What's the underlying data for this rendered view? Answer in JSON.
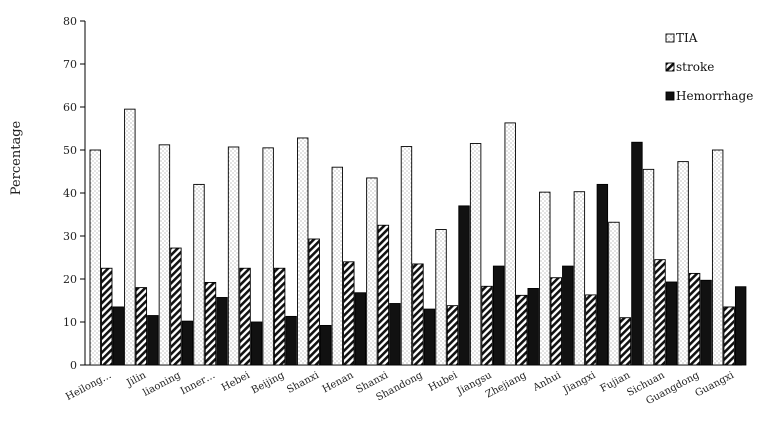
{
  "chart_data": {
    "type": "bar",
    "title": "",
    "xlabel": "",
    "ylabel": "Percentage",
    "ylim": [
      0,
      80
    ],
    "yticks": [
      0,
      10,
      20,
      30,
      40,
      50,
      60,
      70,
      80
    ],
    "grid": false,
    "legend_position": "top-right",
    "categories": [
      "Heilong…",
      "Jilin",
      "liaoning",
      "Inner…",
      "Hebei",
      "Beijing",
      "Shanxi",
      "Henan",
      "Shanxi",
      "Shandong",
      "Hubei",
      "Jiangsu",
      "Zhejiang",
      "Anhui",
      "Jiangxi",
      "Fujian",
      "Sichuan",
      "Guangdong",
      "Guangxi"
    ],
    "series": [
      {
        "name": "TIA",
        "pattern": "dotted",
        "values": [
          50.0,
          59.5,
          51.2,
          42.0,
          50.7,
          50.5,
          52.8,
          46.0,
          43.5,
          50.8,
          31.5,
          51.5,
          56.3,
          40.2,
          40.3,
          33.2,
          45.5,
          47.3,
          50.0
        ]
      },
      {
        "name": "stroke",
        "pattern": "hatched",
        "values": [
          22.5,
          18.0,
          27.2,
          19.2,
          22.5,
          22.5,
          29.3,
          24.0,
          32.5,
          23.5,
          13.8,
          18.3,
          16.2,
          20.3,
          16.3,
          11.0,
          24.5,
          21.3,
          13.5
        ]
      },
      {
        "name": "Hemorrhage",
        "pattern": "solid",
        "values": [
          13.5,
          11.5,
          10.2,
          15.7,
          10.0,
          11.3,
          9.2,
          16.8,
          14.3,
          13.0,
          37.0,
          23.0,
          17.8,
          23.0,
          42.0,
          51.8,
          19.3,
          19.7,
          18.2
        ]
      }
    ]
  }
}
